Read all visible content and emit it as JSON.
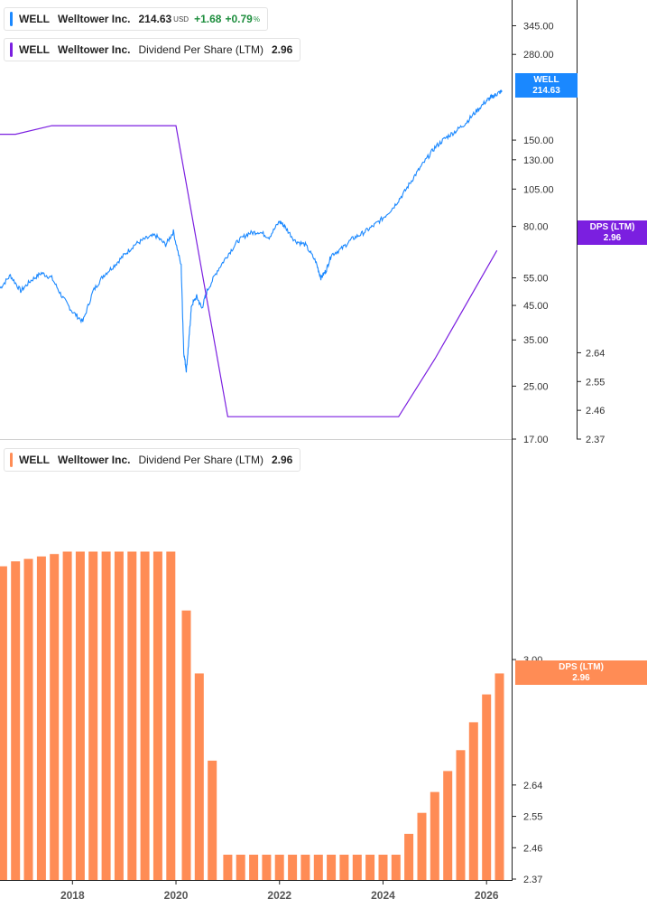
{
  "legends": {
    "price": {
      "symbol": "WELL",
      "name": "Welltower Inc.",
      "value": "214.63",
      "currency": "USD",
      "change": "+1.68",
      "change_pct": "+0.79",
      "pct_sign": "%",
      "color": "#1a88ff"
    },
    "dps_top": {
      "symbol": "WELL",
      "name": "Welltower Inc.",
      "label": "Dividend Per Share (LTM)",
      "value": "2.96",
      "color": "#7b1fe0"
    },
    "dps_bottom": {
      "symbol": "WELL",
      "name": "Welltower Inc.",
      "label": "Dividend Per Share (LTM)",
      "value": "2.96",
      "color": "#ff8c55"
    }
  },
  "tags": {
    "price_tag": {
      "line1": "WELL",
      "line2": "214.63",
      "color": "#1a88ff"
    },
    "dps_tag_top": {
      "line1": "DPS (LTM)",
      "line2": "2.96",
      "color": "#7b1fe0"
    },
    "dps_tag_bottom": {
      "line1": "DPS (LTM)",
      "line2": "2.96",
      "color": "#ff8c55"
    }
  },
  "chart_data": [
    {
      "type": "line",
      "series": [
        {
          "x": [
            2016.6,
            2016.8,
            2017.0,
            2017.2,
            2017.4,
            2017.6,
            2017.8,
            2018.0,
            2018.2,
            2018.4,
            2018.6,
            2018.8,
            2019.0,
            2019.2,
            2019.4,
            2019.6,
            2019.8,
            2019.95,
            2020.1,
            2020.15,
            2020.2,
            2020.25,
            2020.3,
            2020.4,
            2020.5,
            2020.6,
            2020.8,
            2021.0,
            2021.2,
            2021.4,
            2021.6,
            2021.8,
            2022.0,
            2022.1,
            2022.3,
            2022.5,
            2022.7,
            2022.8,
            2022.9,
            2023.0,
            2023.2,
            2023.4,
            2023.6,
            2023.8,
            2024.0,
            2024.2,
            2024.4,
            2024.6,
            2024.8,
            2025.0,
            2025.2,
            2025.4,
            2025.6,
            2025.8,
            2026.0,
            2026.1,
            2026.2,
            2026.3
          ],
          "y": [
            51,
            56,
            50,
            54,
            57,
            55,
            48,
            43,
            40,
            50,
            56,
            60,
            65,
            70,
            73,
            75,
            70,
            77,
            60,
            32,
            28,
            35,
            45,
            48,
            44,
            50,
            58,
            65,
            72,
            76,
            77,
            74,
            83,
            80,
            72,
            70,
            62,
            55,
            58,
            65,
            68,
            73,
            76,
            80,
            85,
            92,
            102,
            115,
            128,
            142,
            152,
            160,
            170,
            185,
            200,
            205,
            210,
            214.63
          ]
        },
        {
          "x": [
            2016.6,
            2016.9,
            2017.6,
            2018.0,
            2019.0,
            2020.0,
            2021.0,
            2022.0,
            2023.0,
            2024.0,
            2024.3,
            2025.0,
            2026.2
          ],
          "y": [
            3.48,
            3.48,
            3.52,
            3.52,
            3.52,
            3.52,
            2.44,
            2.44,
            2.44,
            2.44,
            2.44,
            2.62,
            2.96
          ]
        }
      ],
      "y_ticks": [
        "345.00",
        "280.00",
        "150.00",
        "130.00",
        "105.00",
        "80.00",
        "55.00",
        "45.00",
        "35.00",
        "25.00",
        "17.00"
      ],
      "y2_ticks": [
        "3.00",
        "2.64",
        "2.55",
        "2.46",
        "2.37"
      ],
      "ylim": [
        17,
        400
      ],
      "ylim2": [
        2.37,
        3.6
      ],
      "ylog": true,
      "grid": false
    },
    {
      "type": "bar",
      "x": [
        2016.65,
        2016.9,
        2017.15,
        2017.4,
        2017.65,
        2017.9,
        2018.15,
        2018.4,
        2018.65,
        2018.9,
        2019.15,
        2019.4,
        2019.65,
        2019.9,
        2020.2,
        2020.45,
        2020.7,
        2021.0,
        2021.25,
        2021.5,
        2021.75,
        2022.0,
        2022.25,
        2022.5,
        2022.75,
        2023.0,
        2023.25,
        2023.5,
        2023.75,
        2024.0,
        2024.25,
        2024.5,
        2024.75,
        2025.0,
        2025.25,
        2025.5,
        2025.75,
        2026.0,
        2026.25
      ],
      "values": [
        3.38,
        3.4,
        3.41,
        3.42,
        3.43,
        3.44,
        3.44,
        3.44,
        3.44,
        3.44,
        3.44,
        3.44,
        3.44,
        3.44,
        3.2,
        2.96,
        2.71,
        2.44,
        2.44,
        2.44,
        2.44,
        2.44,
        2.44,
        2.44,
        2.44,
        2.44,
        2.44,
        2.44,
        2.44,
        2.44,
        2.44,
        2.5,
        2.56,
        2.62,
        2.68,
        2.74,
        2.82,
        2.9,
        2.96
      ],
      "y_ticks": [
        "3.00",
        "2.64",
        "2.55",
        "2.46",
        "2.37"
      ],
      "x_ticks": [
        "2018",
        "2020",
        "2022",
        "2024",
        "2026"
      ],
      "ylim": [
        2.37,
        3.6
      ],
      "grid": false
    }
  ]
}
